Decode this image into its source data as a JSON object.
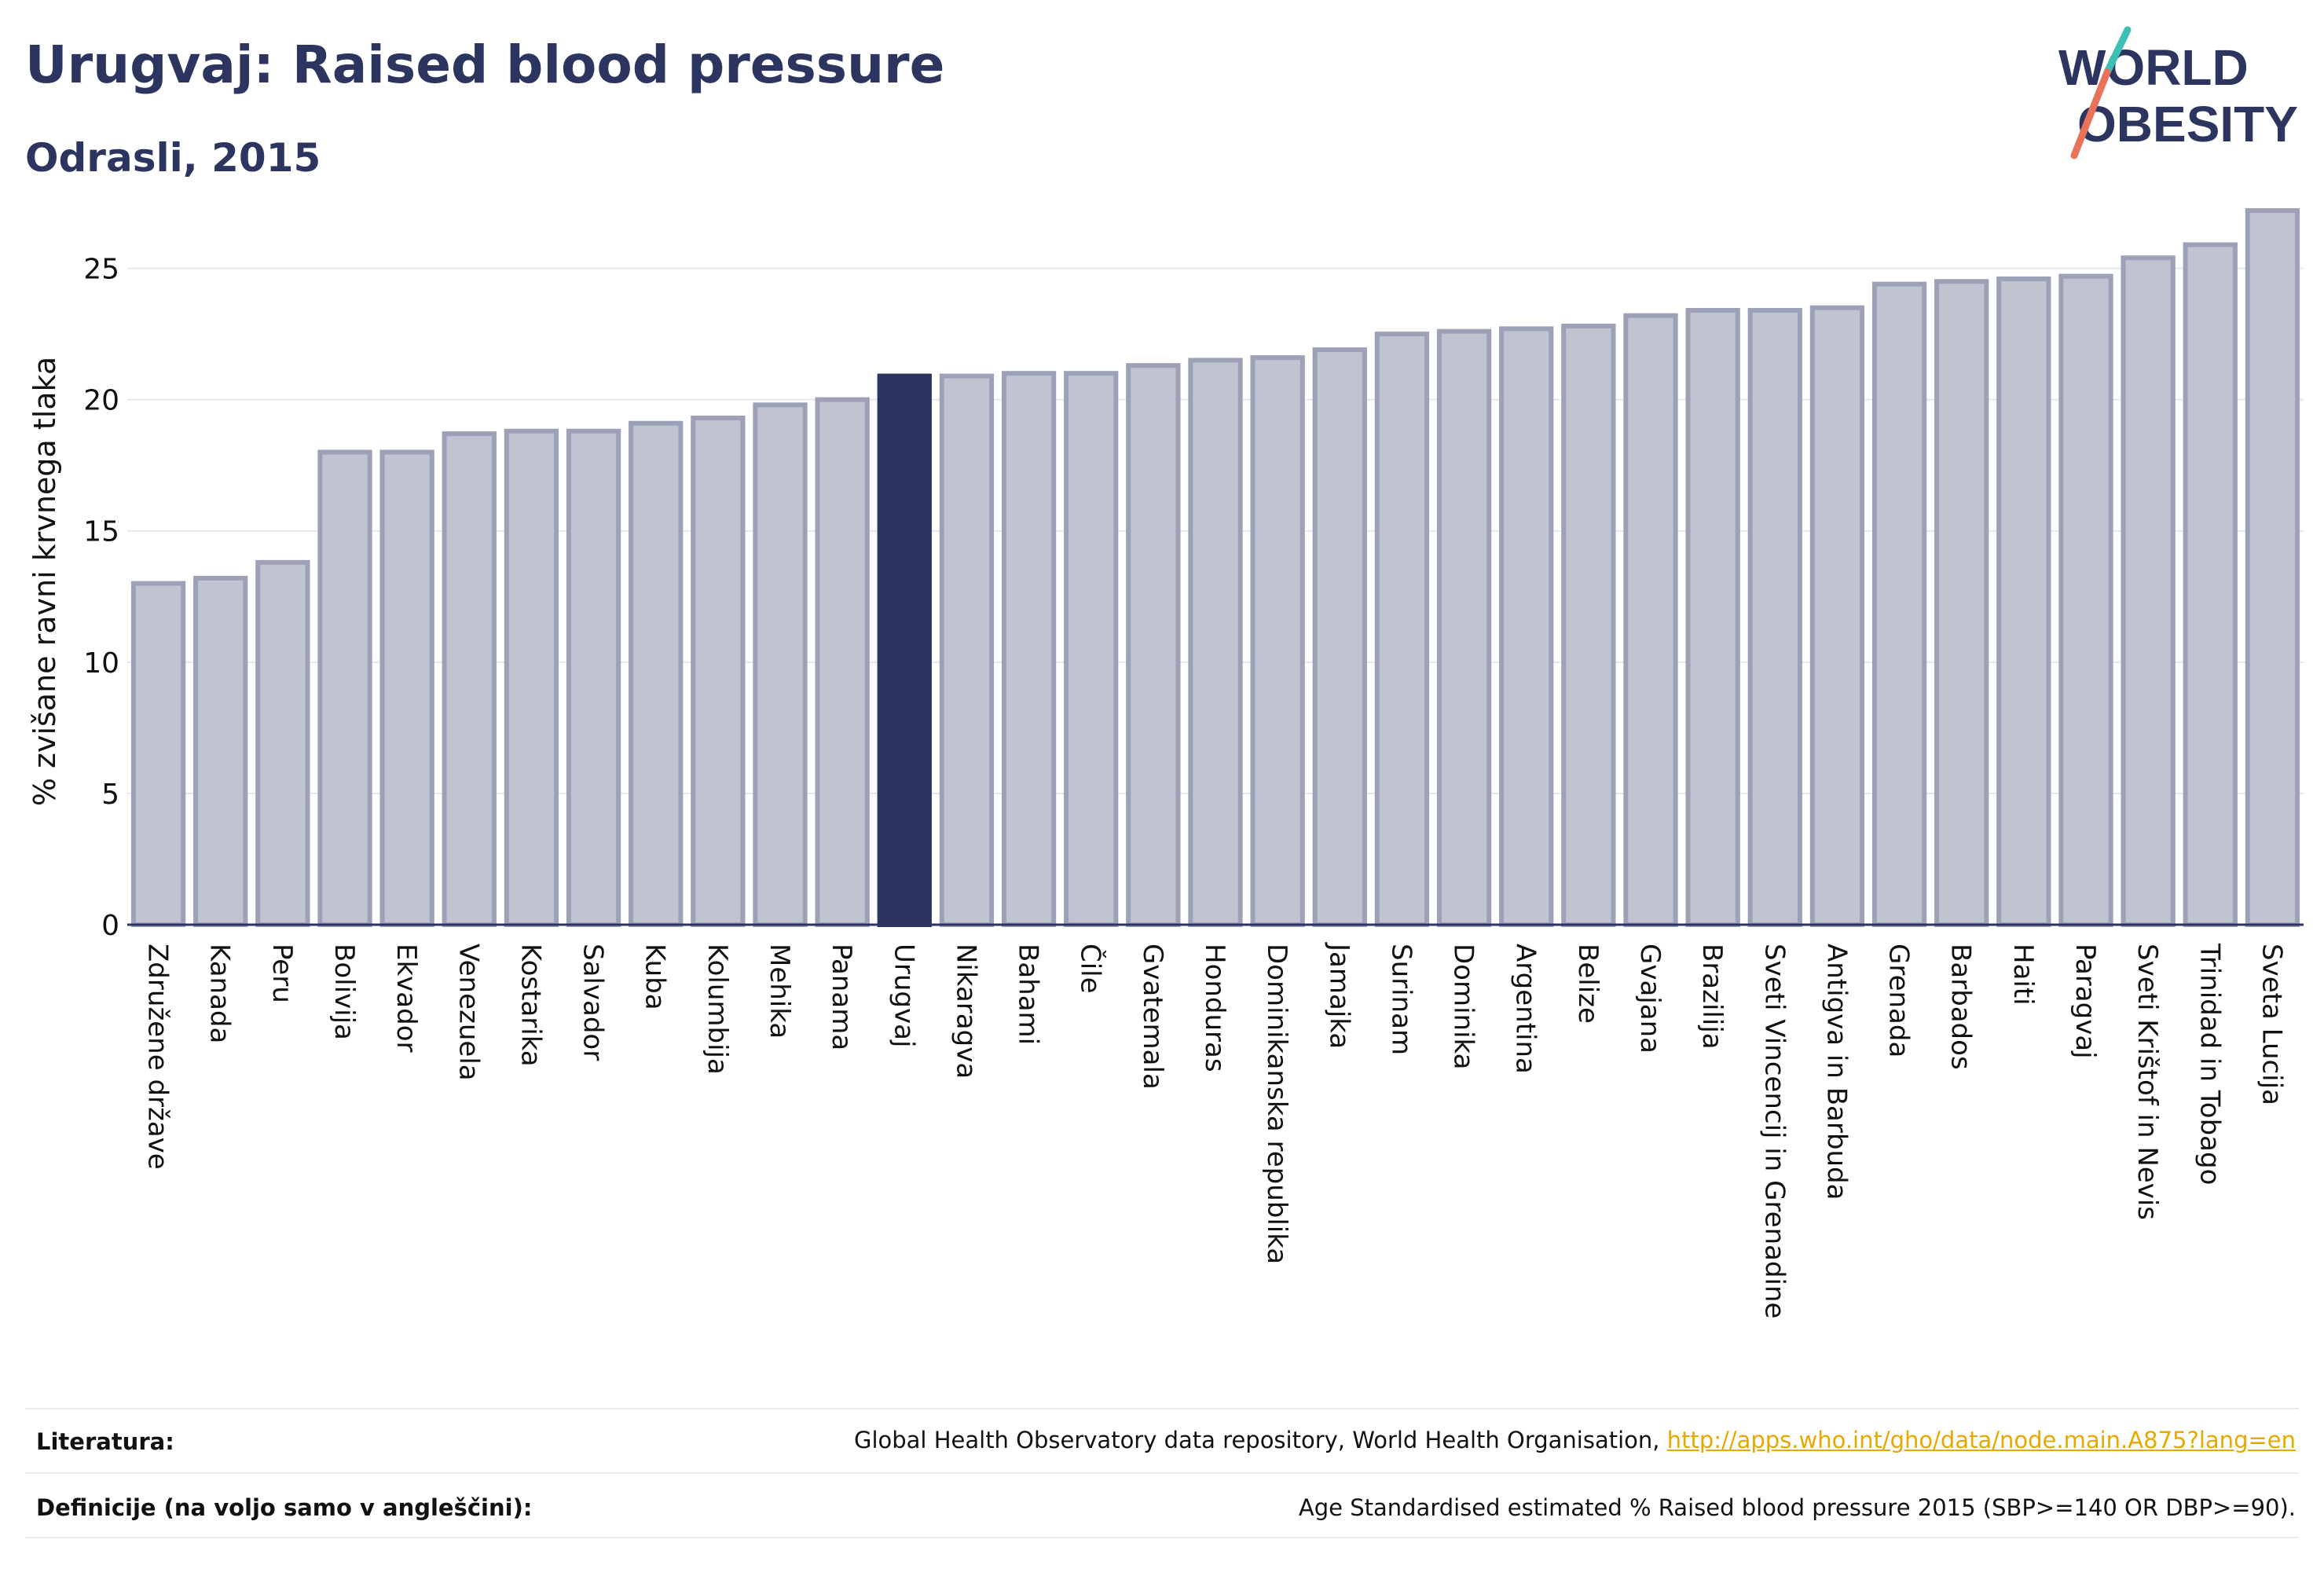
{
  "header": {
    "title": "Urugvaj: Raised blood pressure",
    "subtitle": "Odrasli, 2015"
  },
  "logo": {
    "line1": "WORLD",
    "line2": "OBESITY"
  },
  "colors": {
    "bar": "#c0c3d0",
    "bar_border": "#9ca1b8",
    "highlight": "#2b3560",
    "grid": "#e6e7ec",
    "axis": "#2b3560",
    "link": "#e8a800"
  },
  "chart_data": {
    "type": "bar",
    "ylabel": "% zvišane ravni krvnega tlaka",
    "ylim": [
      0,
      27.5
    ],
    "yticks": [
      0,
      5,
      10,
      15,
      20,
      25
    ],
    "grid": true,
    "highlight": "Urugvaj",
    "categories": [
      "Združene države",
      "Kanada",
      "Peru",
      "Bolivija",
      "Ekvador",
      "Venezuela",
      "Kostarika",
      "Salvador",
      "Kuba",
      "Kolumbija",
      "Mehika",
      "Panama",
      "Urugvaj",
      "Nikaragva",
      "Bahami",
      "Čile",
      "Gvatemala",
      "Honduras",
      "Dominikanska republika",
      "Jamajka",
      "Surinam",
      "Dominika",
      "Argentina",
      "Belize",
      "Gvajana",
      "Brazilija",
      "Sveti Vincencij in Grenadine",
      "Antigva in Barbuda",
      "Grenada",
      "Barbados",
      "Haiti",
      "Paragvaj",
      "Sveti Krištof in Nevis",
      "Trinidad in Tobago",
      "Sveta Lucija"
    ],
    "values": [
      13.0,
      13.2,
      13.8,
      18.0,
      18.0,
      18.7,
      18.8,
      18.8,
      19.1,
      19.3,
      19.8,
      20.0,
      20.9,
      20.9,
      21.0,
      21.0,
      21.3,
      21.5,
      21.6,
      21.9,
      22.5,
      22.6,
      22.7,
      22.8,
      23.2,
      23.4,
      23.4,
      23.5,
      24.4,
      24.5,
      24.6,
      24.7,
      25.4,
      25.9,
      27.2
    ]
  },
  "footer": {
    "literature_label": "Literatura:",
    "literature_text": "Global Health Observatory data repository, World Health Organisation, ",
    "literature_link": "http://apps.who.int/gho/data/node.main.A875?lang=en",
    "definitions_label": "Definicije (na voljo samo v angleščini):",
    "definitions_text": "Age Standardised estimated % Raised blood pressure 2015 (SBP>=140 OR DBP>=90)."
  }
}
